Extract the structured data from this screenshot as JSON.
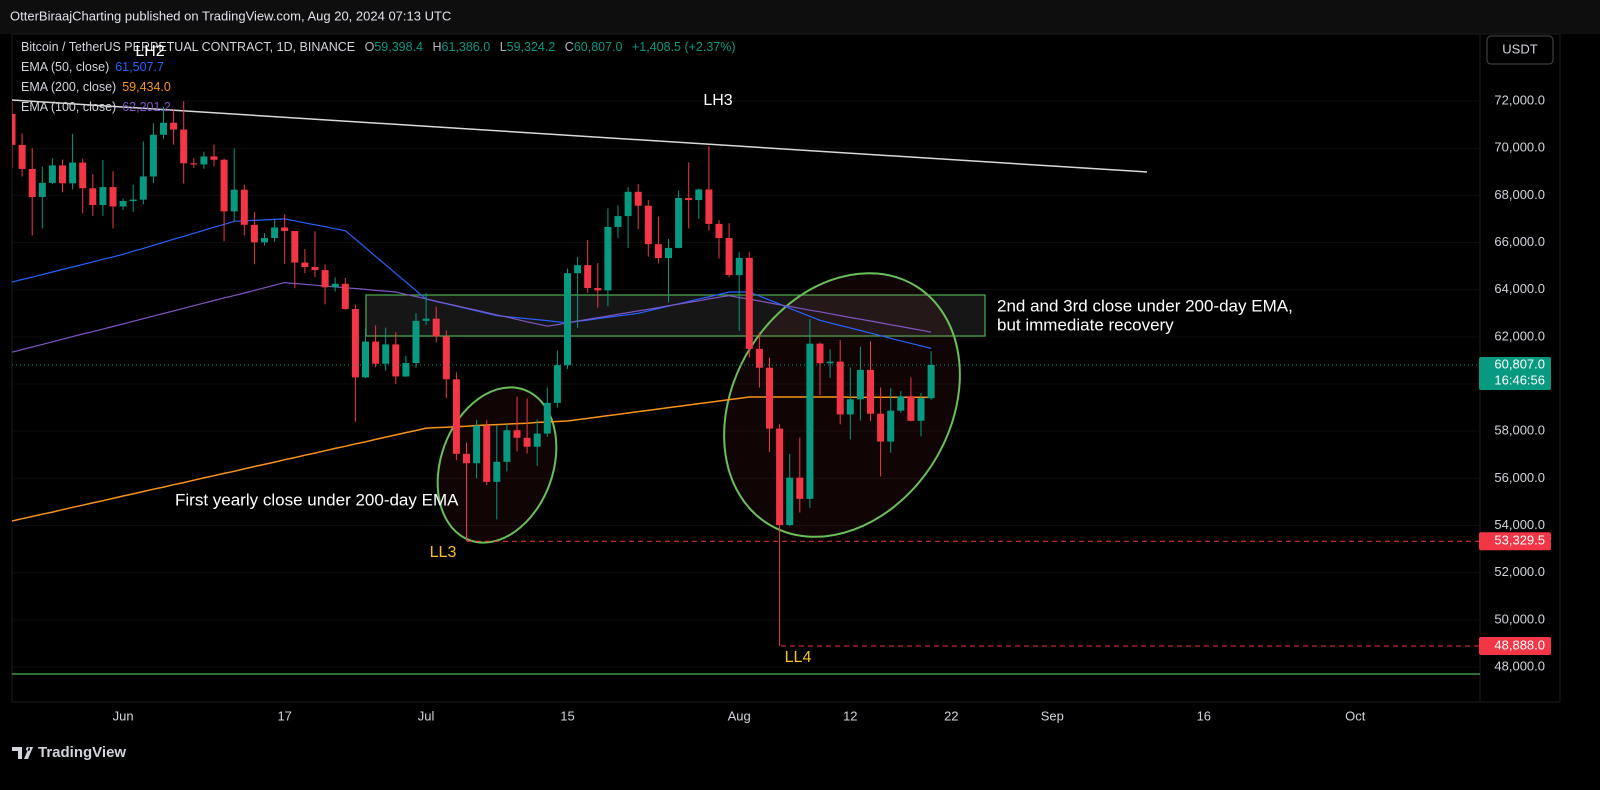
{
  "header": {
    "publisher": "OtterBiraajCharting published on TradingView.com, Aug 20, 2024 07:13 UTC",
    "brand": "TradingView",
    "currency": "USDT"
  },
  "chart_data": {
    "type": "candlestick",
    "symbol": "Bitcoin / TetherUS PERPETUAL CONTRACT, 1D, BINANCE",
    "ohlc_legend": [
      {
        "label": "O",
        "value": "59,398.4"
      },
      {
        "label": "H",
        "value": "61,386.0"
      },
      {
        "label": "L",
        "value": "59,324.2"
      },
      {
        "label": "C",
        "value": "60,807.0"
      }
    ],
    "change": "+1,408.5 (+2.37%)",
    "categories": [
      null,
      null,
      null,
      null,
      null,
      null,
      null,
      null,
      null,
      null,
      null,
      "Jun",
      null,
      null,
      null,
      null,
      null,
      null,
      null,
      null,
      null,
      null,
      null,
      null,
      null,
      null,
      null,
      "17",
      null,
      null,
      null,
      null,
      null,
      null,
      null,
      null,
      null,
      null,
      null,
      null,
      null,
      "Jul",
      null,
      null,
      null,
      null,
      null,
      null,
      null,
      null,
      null,
      null,
      null,
      null,
      null,
      "15",
      null,
      null,
      null,
      null,
      null,
      null,
      null,
      null,
      null,
      null,
      null,
      null,
      null,
      null,
      null,
      null,
      "Aug",
      null,
      null,
      null,
      null,
      null,
      null,
      null,
      null,
      null,
      null,
      "12",
      null,
      null,
      null,
      null,
      null,
      null,
      null,
      null,
      null,
      "22",
      null,
      null,
      null,
      null,
      null,
      null,
      null,
      null,
      null,
      "Sep",
      null,
      null,
      null,
      null,
      null,
      null,
      null,
      null,
      null,
      null,
      null,
      null,
      null,
      null,
      "16",
      null,
      null,
      null,
      null,
      null,
      null,
      null,
      null,
      null,
      null,
      null,
      null,
      null,
      null,
      "Oct",
      null,
      null,
      null,
      null,
      null,
      null,
      null,
      null,
      null,
      null,
      null,
      null
    ],
    "open": [
      71450,
      70140,
      69120,
      67930,
      68530,
      69270,
      68510,
      69390,
      68300,
      67590,
      68350,
      67530,
      67760,
      67820,
      68800,
      70570,
      71080,
      70790,
      69360,
      69310,
      69650,
      69510,
      67320,
      68240,
      66750,
      66010,
      66190,
      66640,
      66490,
      65150,
      64960,
      64830,
      64100,
      64250,
      63180,
      60280,
      61800,
      60860,
      61680,
      60320,
      60890,
      62680,
      62770,
      62020,
      60200,
      57040,
      56640,
      58230,
      55850,
      56700,
      58040,
      57720,
      57340,
      57900,
      59200,
      60800,
      64700,
      65040,
      64070,
      63970,
      66660,
      67120,
      68150,
      67560,
      65930,
      65340,
      65770,
      67890,
      67800,
      68250,
      66790,
      66190,
      64620,
      65350,
      61490,
      60690,
      58110,
      54020,
      56030,
      55130,
      61710,
      60880,
      60950,
      58710,
      59350,
      60600,
      58740,
      57560,
      58870,
      59480,
      58440,
      59398.4,
      null,
      null,
      null,
      null,
      null,
      null,
      null,
      null,
      null,
      null,
      null,
      null,
      null,
      null,
      null,
      null,
      null,
      null,
      null,
      null,
      null,
      null,
      null,
      null,
      null,
      null,
      null,
      null,
      null,
      null,
      null,
      null,
      null,
      null,
      null,
      null,
      null,
      null,
      null,
      null,
      null,
      null,
      null,
      null,
      null,
      null,
      null,
      null,
      null,
      null,
      null,
      null,
      null,
      null
    ],
    "high": [
      71950,
      70630,
      70000,
      69220,
      69570,
      69520,
      70610,
      69560,
      68900,
      69500,
      69020,
      67860,
      68450,
      70290,
      71060,
      71760,
      71620,
      71990,
      69580,
      69850,
      70150,
      69560,
      69990,
      68450,
      67300,
      66400,
      66970,
      67190,
      66490,
      65730,
      66480,
      65070,
      64520,
      64500,
      63370,
      62380,
      62480,
      62390,
      62200,
      61200,
      63000,
      63860,
      63280,
      62270,
      60500,
      57520,
      58480,
      58460,
      58250,
      58300,
      59460,
      59390,
      58500,
      59850,
      61420,
      64900,
      65390,
      66110,
      65130,
      67450,
      67580,
      68350,
      68480,
      67800,
      67100,
      66150,
      68200,
      69400,
      68290,
      70080,
      66950,
      66820,
      65590,
      65590,
      62190,
      61120,
      58300,
      57040,
      57730,
      62750,
      61760,
      61470,
      61860,
      60700,
      61580,
      61800,
      59850,
      59820,
      59700,
      60270,
      59620,
      61386,
      null,
      null,
      null,
      null,
      null,
      null,
      null,
      null,
      null,
      null,
      null,
      null,
      null,
      null,
      null,
      null,
      null,
      null,
      null,
      null,
      null,
      null,
      null,
      null,
      null,
      null,
      null,
      null,
      null,
      null,
      null,
      null,
      null,
      null,
      null,
      null,
      null,
      null,
      null,
      null,
      null,
      null,
      null,
      null,
      null,
      null,
      null,
      null,
      null,
      null,
      null,
      null,
      null,
      null
    ],
    "low": [
      69160,
      68800,
      66300,
      66600,
      68480,
      68130,
      68250,
      67240,
      67130,
      67130,
      66600,
      67380,
      67300,
      67620,
      68520,
      70390,
      70150,
      68500,
      69160,
      69130,
      69230,
      66050,
      66900,
      66300,
      65080,
      65870,
      66020,
      65100,
      64060,
      64700,
      64530,
      63380,
      63920,
      63150,
      58400,
      60250,
      60710,
      60570,
      60000,
      60300,
      60690,
      62500,
      61760,
      59400,
      56770,
      53329.5,
      56000,
      55720,
      54260,
      56290,
      57150,
      57050,
      56530,
      57760,
      59000,
      60640,
      62380,
      63870,
      63240,
      63300,
      66180,
      65770,
      66570,
      65400,
      65110,
      63450,
      65750,
      66600,
      67000,
      66500,
      65320,
      64530,
      62250,
      61120,
      59850,
      57120,
      48888,
      53980,
      54550,
      54750,
      59530,
      60260,
      58290,
      57650,
      58450,
      58430,
      56080,
      57080,
      58780,
      58420,
      57780,
      59324.2,
      null,
      null,
      null,
      null,
      null,
      null,
      null,
      null,
      null,
      null,
      null,
      null,
      null,
      null,
      null,
      null,
      null,
      null,
      null,
      null,
      null,
      null,
      null,
      null,
      null,
      null,
      null,
      null,
      null,
      null,
      null,
      null,
      null,
      null,
      null,
      null,
      null,
      null,
      null,
      null,
      null,
      null,
      null,
      null,
      null,
      null,
      null,
      null,
      null,
      null,
      null,
      null,
      null,
      null
    ],
    "close": [
      70140,
      69120,
      67930,
      68530,
      69270,
      68510,
      69390,
      68300,
      67590,
      68350,
      67530,
      67760,
      67820,
      68800,
      70570,
      71080,
      70790,
      69360,
      69310,
      69650,
      69510,
      67320,
      68240,
      66750,
      66010,
      66190,
      66640,
      66490,
      65150,
      64960,
      64830,
      64100,
      64250,
      63180,
      60280,
      61800,
      60860,
      61680,
      60320,
      60890,
      62680,
      62770,
      62020,
      60200,
      57040,
      56640,
      58230,
      55850,
      56700,
      58040,
      57720,
      57340,
      57900,
      59200,
      60800,
      64700,
      65040,
      64070,
      63970,
      66660,
      67120,
      68150,
      67560,
      65930,
      65340,
      65770,
      67890,
      67800,
      68250,
      66790,
      66190,
      64620,
      65350,
      61490,
      60690,
      58110,
      54020,
      56030,
      55130,
      61710,
      60880,
      60950,
      58710,
      59350,
      60600,
      58740,
      57560,
      58870,
      59480,
      58440,
      59398.4,
      60807,
      null,
      null,
      null,
      null,
      null,
      null,
      null,
      null,
      null,
      null,
      null,
      null,
      null,
      null,
      null,
      null,
      null,
      null,
      null,
      null,
      null,
      null,
      null,
      null,
      null,
      null,
      null,
      null,
      null,
      null,
      null,
      null,
      null,
      null,
      null,
      null,
      null,
      null,
      null,
      null,
      null,
      null,
      null,
      null,
      null,
      null,
      null,
      null,
      null,
      null,
      null,
      null,
      null,
      null
    ],
    "up_color": "#089981",
    "down_color": "#f23645",
    "series": [
      {
        "name": "EMA (50, close)",
        "color": "#2962ff",
        "last_label": "61,507.7",
        "values": [
          64320,
          64430,
          64530,
          64640,
          64750,
          64860,
          64960,
          65070,
          65180,
          65290,
          65390,
          65500,
          65630,
          65750,
          65880,
          66010,
          66140,
          66260,
          66390,
          66520,
          66650,
          66770,
          66900,
          66920,
          66940,
          66960,
          66980,
          67000,
          66920,
          66830,
          66750,
          66670,
          66580,
          66500,
          66140,
          65780,
          65410,
          65050,
          64690,
          64330,
          63960,
          63600,
          63500,
          63400,
          63300,
          63200,
          63100,
          63000,
          62900,
          62860,
          62810,
          62770,
          62730,
          62690,
          62640,
          62600,
          62660,
          62710,
          62770,
          62830,
          62890,
          62940,
          63000,
          63100,
          63200,
          63300,
          63400,
          63500,
          63600,
          63700,
          63800,
          63900,
          63900,
          63900,
          63730,
          63560,
          63390,
          63210,
          63040,
          62870,
          62700,
          62590,
          62480,
          62380,
          62270,
          62160,
          62050,
          61940,
          61830,
          61720,
          61620,
          61507.7,
          null,
          null,
          null,
          null,
          null,
          null,
          null,
          null,
          null,
          null,
          null,
          null,
          null,
          null,
          null,
          null,
          null,
          null,
          null,
          null,
          null,
          null,
          null,
          null,
          null,
          null,
          null,
          null,
          null,
          null,
          null,
          null,
          null,
          null,
          null,
          null,
          null,
          null,
          null,
          null,
          null,
          null,
          null,
          null,
          null,
          null,
          null,
          null,
          null,
          null,
          null,
          null,
          null,
          null
        ]
      },
      {
        "name": "EMA (200, close)",
        "color": "#f7931a",
        "last_label": "59,434.0",
        "values": [
          54190,
          54290,
          54380,
          54480,
          54570,
          54670,
          54770,
          54860,
          54960,
          55050,
          55150,
          55250,
          55340,
          55440,
          55540,
          55630,
          55730,
          55820,
          55920,
          56020,
          56110,
          56210,
          56300,
          56400,
          56500,
          56590,
          56690,
          56790,
          56880,
          56980,
          57070,
          57170,
          57270,
          57360,
          57460,
          57550,
          57650,
          57750,
          57840,
          57940,
          58030,
          58130,
          58150,
          58170,
          58190,
          58210,
          58240,
          58260,
          58280,
          58300,
          58320,
          58340,
          58370,
          58390,
          58410,
          58430,
          58490,
          58540,
          58600,
          58660,
          58710,
          58770,
          58830,
          58880,
          58940,
          59000,
          59050,
          59110,
          59170,
          59220,
          59280,
          59340,
          59390,
          59450,
          59450,
          59450,
          59450,
          59450,
          59450,
          59450,
          59450,
          59450,
          59450,
          59440,
          59440,
          59440,
          59440,
          59440,
          59440,
          59440,
          59440,
          59434,
          null,
          null,
          null,
          null,
          null,
          null,
          null,
          null,
          null,
          null,
          null,
          null,
          null,
          null,
          null,
          null,
          null,
          null,
          null,
          null,
          null,
          null,
          null,
          null,
          null,
          null,
          null,
          null,
          null,
          null,
          null,
          null,
          null,
          null,
          null,
          null,
          null,
          null,
          null,
          null,
          null,
          null,
          null,
          null,
          null,
          null,
          null,
          null,
          null,
          null,
          null,
          null,
          null,
          null
        ]
      },
      {
        "name": "EMA (100, close)",
        "color": "#7e57c2",
        "last_label": "62,201.2",
        "values": [
          61350,
          61460,
          61570,
          61680,
          61790,
          61900,
          62010,
          62120,
          62220,
          62330,
          62440,
          62550,
          62660,
          62770,
          62880,
          62990,
          63100,
          63210,
          63320,
          63430,
          63540,
          63650,
          63750,
          63860,
          63970,
          64080,
          64190,
          64300,
          64260,
          64230,
          64190,
          64150,
          64120,
          64080,
          64050,
          64010,
          63970,
          63940,
          63900,
          63800,
          63710,
          63610,
          63510,
          63420,
          63320,
          63220,
          63130,
          63030,
          62930,
          62840,
          62740,
          62640,
          62550,
          62450,
          62520,
          62590,
          62670,
          62740,
          62810,
          62880,
          62960,
          63030,
          63100,
          63170,
          63240,
          63320,
          63390,
          63460,
          63530,
          63610,
          63680,
          63750,
          63670,
          63600,
          63520,
          63440,
          63360,
          63290,
          63210,
          63130,
          63060,
          62980,
          62900,
          62820,
          62750,
          62670,
          62590,
          62510,
          62440,
          62360,
          62280,
          62201.2,
          null,
          null,
          null,
          null,
          null,
          null,
          null,
          null,
          null,
          null,
          null,
          null,
          null,
          null,
          null,
          null,
          null,
          null,
          null,
          null,
          null,
          null,
          null,
          null,
          null,
          null,
          null,
          null,
          null,
          null,
          null,
          null,
          null,
          null,
          null,
          null,
          null,
          null,
          null,
          null,
          null,
          null,
          null,
          null,
          null,
          null,
          null,
          null,
          null,
          null,
          null,
          null,
          null,
          null
        ]
      }
    ],
    "ylim": [
      46600,
      74800
    ],
    "yticks": [
      {
        "value": 48000,
        "label": "48,000.0"
      },
      {
        "value": 50000,
        "label": "50,000.0"
      },
      {
        "value": 52000,
        "label": "52,000.0"
      },
      {
        "value": 54000,
        "label": "54,000.0"
      },
      {
        "value": 56000,
        "label": "56,000.0"
      },
      {
        "value": 58000,
        "label": "58,000.0"
      },
      {
        "value": 60000,
        "label": "60,000.0"
      },
      {
        "value": 62000,
        "label": "62,000.0"
      },
      {
        "value": 64000,
        "label": "64,000.0"
      },
      {
        "value": 66000,
        "label": "66,000.0"
      },
      {
        "value": 68000,
        "label": "68,000.0"
      },
      {
        "value": 70000,
        "label": "70,000.0"
      },
      {
        "value": 72000,
        "label": "72,000.0"
      }
    ],
    "last_price": {
      "value": 60807,
      "label": "60,807.0",
      "countdown": "16:46:56",
      "color": "#089981"
    },
    "price_lines": [
      {
        "value": 53329.5,
        "label": "53,329.5",
        "color": "#f23645"
      },
      {
        "value": 48888,
        "label": "48,888.0",
        "color": "#f23645"
      }
    ],
    "annotations": {
      "lh2": "LH2",
      "lh3": "LH3",
      "ll3": "LL3",
      "ll4": "LL4",
      "note_first": "First yearly close under 200-day EMA",
      "note_second_1": "2nd and 3rd close under 200-day EMA,",
      "note_second_2": "but immediate recovery"
    }
  }
}
